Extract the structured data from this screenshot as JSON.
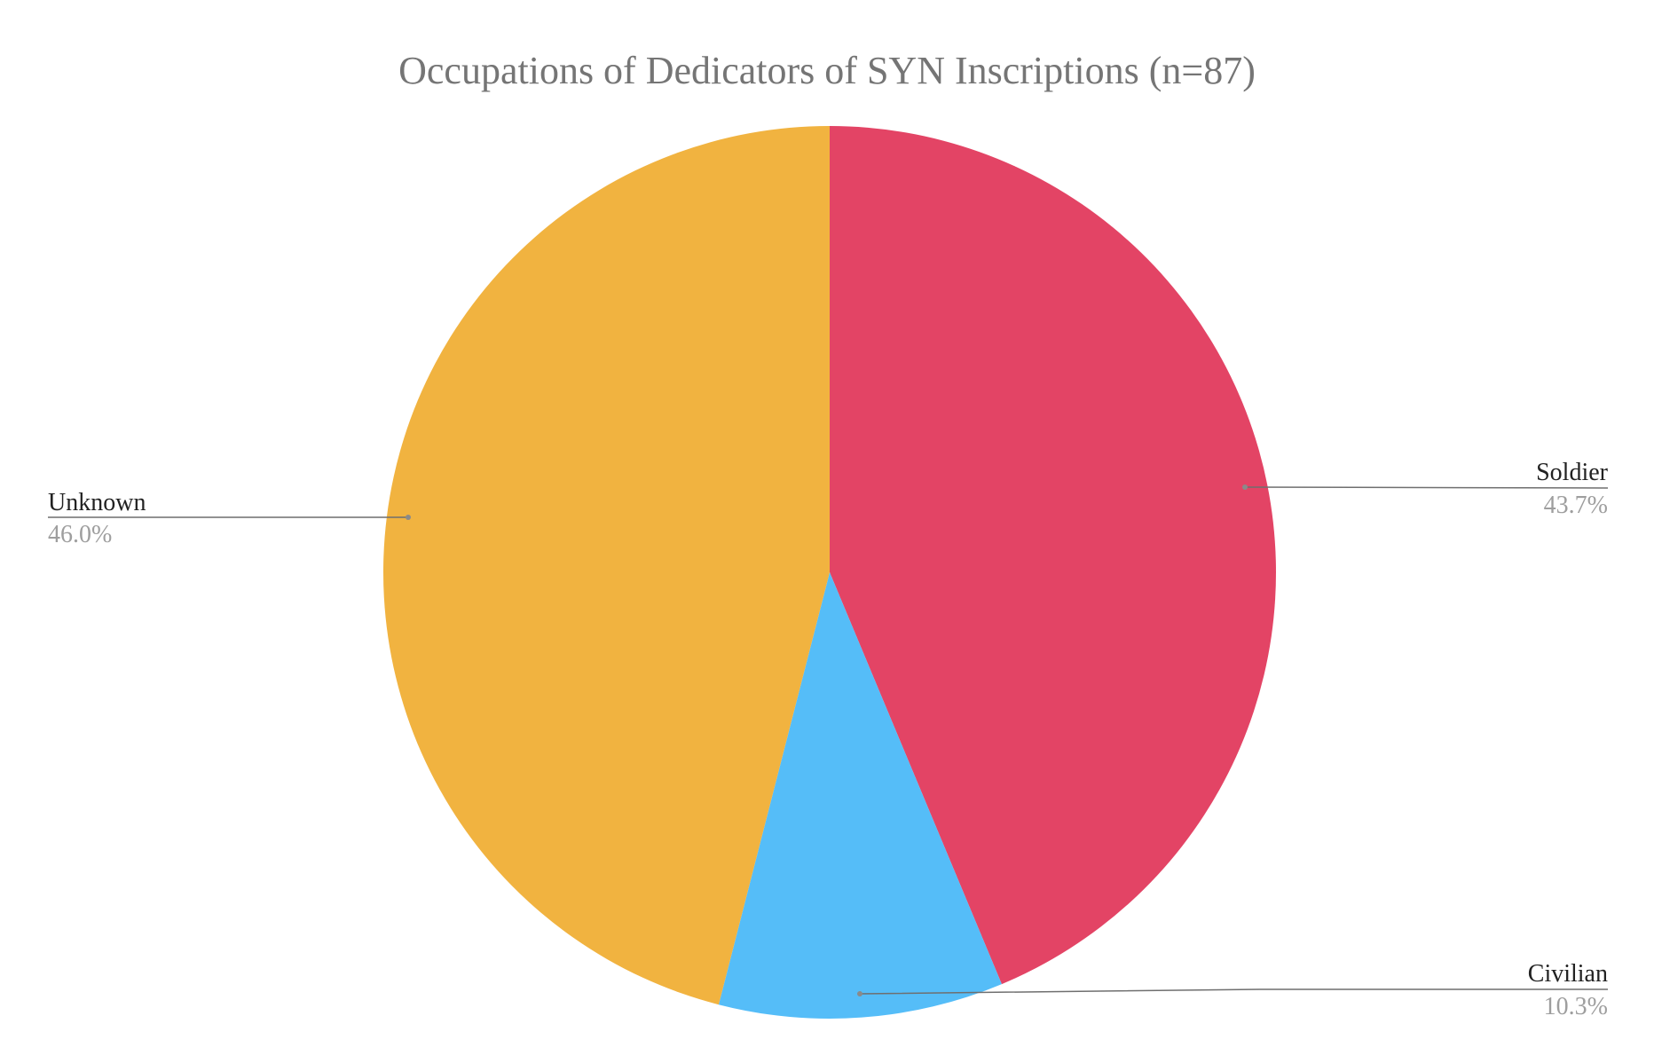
{
  "chart_data": {
    "type": "pie",
    "title": "Occupations of Dedicators of SYN Inscriptions (n=87)",
    "slices": [
      {
        "label": "Soldier",
        "value": 43.7,
        "display": "43.7%",
        "color": "#E34465"
      },
      {
        "label": "Civilian",
        "value": 10.3,
        "display": "10.3%",
        "color": "#55BDF8"
      },
      {
        "label": "Unknown",
        "value": 46.0,
        "display": "46.0%",
        "color": "#F1B340"
      }
    ],
    "start_angle": "12 o'clock",
    "direction": "clockwise",
    "legend": "none",
    "labels": "outside with leader lines"
  }
}
